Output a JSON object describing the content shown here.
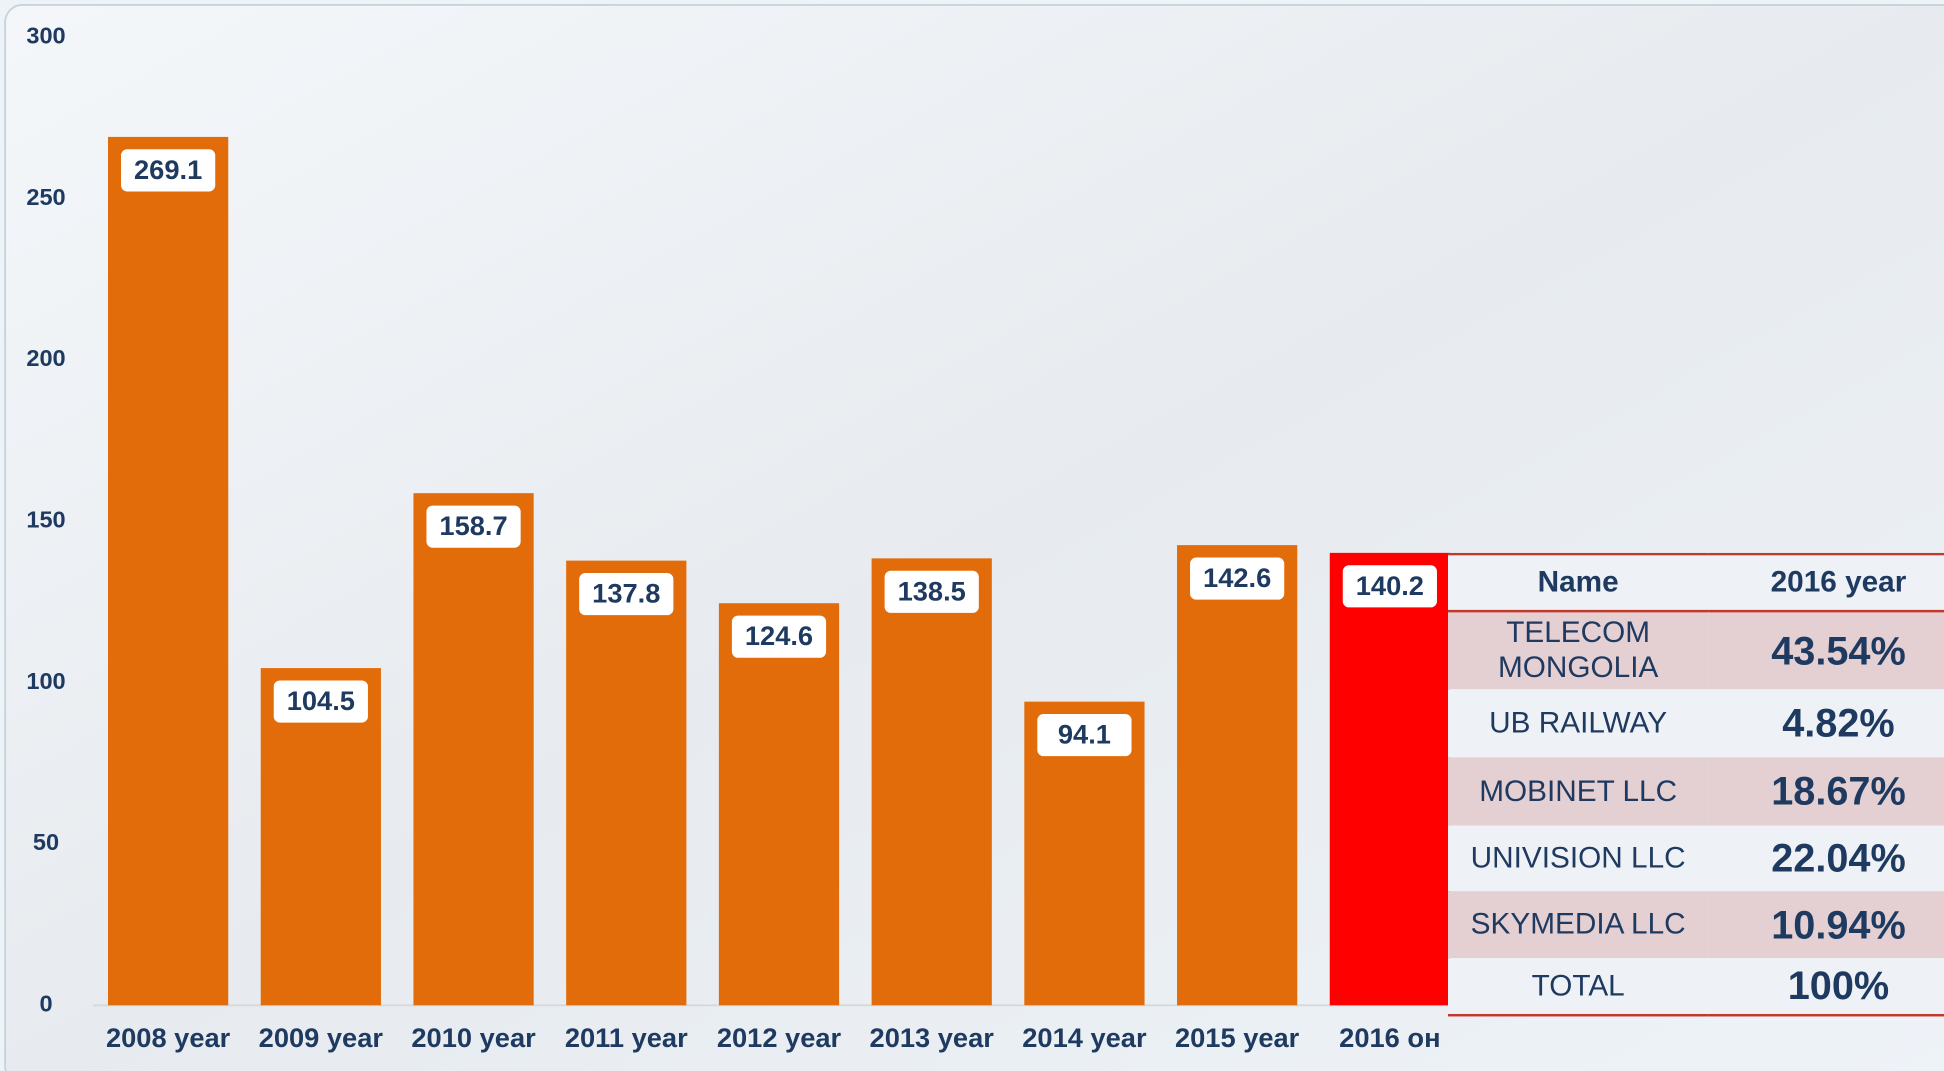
{
  "chart_data": {
    "type": "bar",
    "categories": [
      "2008 year",
      "2009 year",
      "2010 year",
      "2011 year",
      "2012 year",
      "2013 year",
      "2014 year",
      "2015 year",
      "2016 он"
    ],
    "values": [
      269.1,
      104.5,
      158.7,
      137.8,
      124.6,
      138.5,
      94.1,
      142.6,
      140.2
    ],
    "colors": [
      "#e36c0a",
      "#e36c0a",
      "#e36c0a",
      "#e36c0a",
      "#e36c0a",
      "#e36c0a",
      "#e36c0a",
      "#e36c0a",
      "#ff0000"
    ],
    "ylim": [
      0,
      300
    ],
    "yticks": [
      0,
      50,
      100,
      150,
      200,
      250,
      300
    ],
    "grid": false
  },
  "table": {
    "header": [
      "Name",
      "2016  year"
    ],
    "rows": [
      [
        "TELECOM MONGOLIA",
        "43.54%"
      ],
      [
        "UB RAILWAY",
        "4.82%"
      ],
      [
        "MOBINET LLC",
        "18.67%"
      ],
      [
        "UNIVISION LLC",
        "22.04%"
      ],
      [
        "SKYMEDIA LLC",
        "10.94%"
      ],
      [
        "TOTAL",
        "100%"
      ]
    ]
  }
}
